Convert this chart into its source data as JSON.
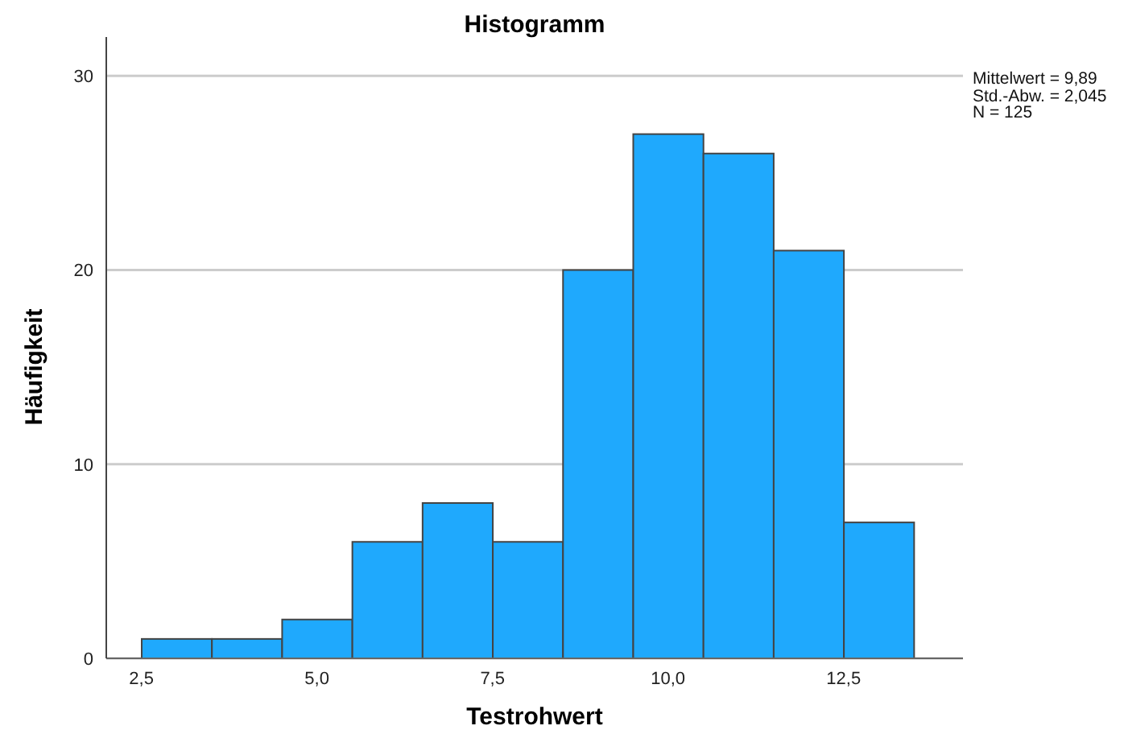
{
  "chart_data": {
    "type": "histogram",
    "title": "Histogramm",
    "xlabel": "Testrohwert",
    "ylabel": "Häufigkeit",
    "bins": [
      2.5,
      3.5,
      4.5,
      5.5,
      6.5,
      7.5,
      8.5,
      9.5,
      10.5,
      11.5,
      12.5,
      13.5
    ],
    "values": [
      1,
      1,
      2,
      6,
      8,
      6,
      20,
      27,
      26,
      21,
      7
    ],
    "color": "#1fa9fd",
    "xlim": [
      2,
      14.2
    ],
    "xticks": [
      {
        "value": 2.5,
        "label": "2,5"
      },
      {
        "value": 5,
        "label": "5,0"
      },
      {
        "value": 7.5,
        "label": "7,5"
      },
      {
        "value": 10,
        "label": "10,0"
      },
      {
        "value": 12.5,
        "label": "12,5"
      }
    ],
    "ylim": [
      0,
      32
    ],
    "yticks": [
      0,
      10,
      20,
      30
    ],
    "grid": "y",
    "annotations": [
      "Mittelwert = 9,89",
      "Std.-Abw. = 2,045",
      "N = 125"
    ]
  }
}
